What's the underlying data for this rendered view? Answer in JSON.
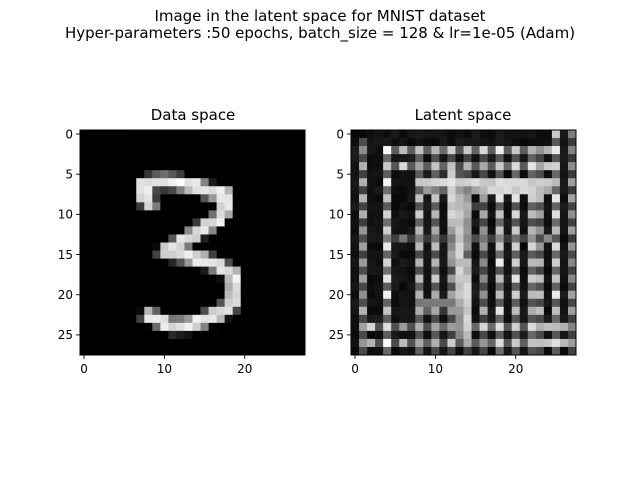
{
  "figure": {
    "title_line1": "Image in the latent space for MNIST dataset",
    "title_line2": "Hyper-parameters :50 epochs, batch_size = 128 & lr=1e-05 (Adam)"
  },
  "chart_data": [
    {
      "type": "heatmap",
      "title": "Data space",
      "colormap": "gray",
      "xlim": [
        -0.5,
        27.5
      ],
      "ylim": [
        27.5,
        -0.5
      ],
      "xticks": [
        0,
        10,
        20
      ],
      "yticks": [
        0,
        5,
        10,
        15,
        20,
        25
      ],
      "grid": false,
      "shape": [
        28,
        28
      ],
      "digit_strokes": [
        {
          "points": [
            [
              7.4,
              6.2
            ],
            [
              9.5,
              5.9
            ],
            [
              11.5,
              6.0
            ],
            [
              13.5,
              6.4
            ],
            [
              15.5,
              7.1
            ],
            [
              17.4,
              7.4
            ]
          ],
          "w": 1.0
        },
        {
          "points": [
            [
              7.4,
              6.2
            ],
            [
              7.5,
              8.0
            ],
            [
              8.2,
              8.7
            ]
          ],
          "w": 0.95
        },
        {
          "points": [
            [
              17.4,
              7.4
            ],
            [
              17.7,
              9.0
            ],
            [
              16.8,
              10.6
            ],
            [
              15.0,
              11.6
            ],
            [
              13.3,
              12.8
            ],
            [
              11.2,
              14.0
            ],
            [
              10.0,
              14.7
            ]
          ],
          "w": 0.95
        },
        {
          "points": [
            [
              10.0,
              14.7
            ],
            [
              12.0,
              15.0
            ],
            [
              14.5,
              15.6
            ],
            [
              16.6,
              16.3
            ],
            [
              18.6,
              17.6
            ]
          ],
          "w": 0.95
        },
        {
          "points": [
            [
              18.6,
              17.6
            ],
            [
              18.8,
              19.5
            ],
            [
              18.5,
              21.1
            ],
            [
              17.1,
              22.2
            ],
            [
              15.2,
              23.0
            ],
            [
              13.0,
              23.8
            ],
            [
              10.7,
              23.9
            ],
            [
              9.3,
              23.1
            ],
            [
              8.0,
              22.7
            ]
          ],
          "w": 0.95
        }
      ]
    },
    {
      "type": "heatmap",
      "title": "Latent space",
      "colormap": "gray",
      "xlim": [
        -0.5,
        27.5
      ],
      "ylim": [
        27.5,
        -0.5
      ],
      "xticks": [
        0,
        10,
        20
      ],
      "yticks": [
        0,
        5,
        10,
        15,
        20,
        25
      ],
      "grid": false,
      "shape": [
        28,
        28
      ],
      "bright_columns": [
        {
          "x": 1,
          "y0": 1,
          "y1": 27,
          "level": 0.72
        },
        {
          "x": 4,
          "y0": 2,
          "y1": 27,
          "level": 1.0
        },
        {
          "x": 8,
          "y0": 2,
          "y1": 27,
          "level": 0.85
        },
        {
          "x": 10,
          "y0": 2,
          "y1": 27,
          "level": 0.85
        },
        {
          "x": 12,
          "y0": 2,
          "y1": 27,
          "level": 0.7
        },
        {
          "x": 14,
          "y0": 2,
          "y1": 27,
          "level": 0.75
        },
        {
          "x": 16,
          "y0": 2,
          "y1": 27,
          "level": 0.7
        },
        {
          "x": 18,
          "y0": 2,
          "y1": 27,
          "level": 0.95
        },
        {
          "x": 20,
          "y0": 2,
          "y1": 27,
          "level": 0.9
        },
        {
          "x": 22,
          "y0": 2,
          "y1": 27,
          "level": 0.9
        },
        {
          "x": 23,
          "y0": 2,
          "y1": 27,
          "level": 0.75
        },
        {
          "x": 25,
          "y0": 0,
          "y1": 27,
          "level": 0.95
        },
        {
          "x": 27,
          "y0": 0,
          "y1": 27,
          "level": 0.65
        }
      ],
      "bright_rows": [
        {
          "y": 2,
          "x0": 4,
          "x1": 25,
          "level": 0.85
        },
        {
          "y": 4,
          "x0": 4,
          "x1": 25,
          "level": 0.85
        },
        {
          "y": 6,
          "x0": 9,
          "x1": 24,
          "level": 0.9
        },
        {
          "y": 13,
          "x0": 4,
          "x1": 25,
          "level": 0.6
        },
        {
          "y": 24,
          "x0": 1,
          "x1": 26,
          "level": 0.85
        },
        {
          "y": 26,
          "x0": 1,
          "x1": 26,
          "level": 0.8
        }
      ],
      "digit_strokes": [
        {
          "points": [
            [
              9.0,
              6.3
            ],
            [
              12.0,
              6.0
            ],
            [
              15.0,
              6.3
            ],
            [
              18.0,
              6.6
            ],
            [
              21.0,
              6.5
            ],
            [
              24.0,
              6.3
            ]
          ],
          "w": 0.9
        },
        {
          "points": [
            [
              12.2,
              5.5
            ],
            [
              12.5,
              10.0
            ],
            [
              13.0,
              14.0
            ],
            [
              13.4,
              18.0
            ],
            [
              13.7,
              22.0
            ],
            [
              13.8,
              25.0
            ]
          ],
          "w": 0.85
        },
        {
          "points": [
            [
              14.0,
              9.0
            ],
            [
              13.0,
              12.0
            ],
            [
              12.5,
              15.0
            ]
          ],
          "w": 0.7
        },
        {
          "points": [
            [
              8.2,
              21.5
            ],
            [
              10.0,
              21.0
            ],
            [
              12.5,
              21.2
            ]
          ],
          "w": 0.5
        }
      ]
    }
  ]
}
